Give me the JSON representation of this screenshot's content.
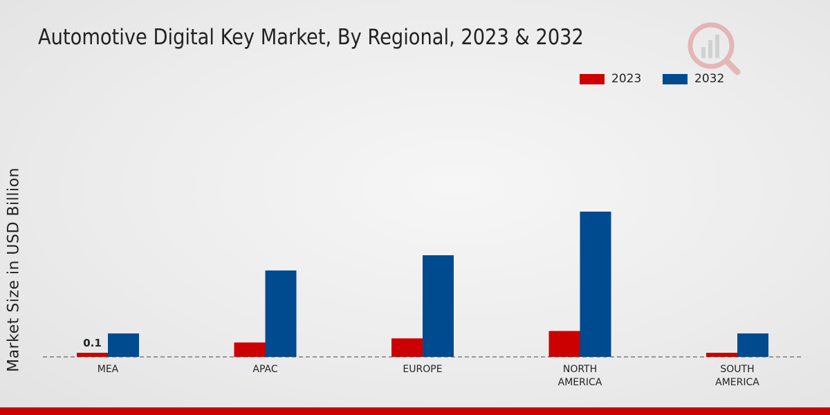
{
  "title": "Automotive Digital Key Market, By Regional, 2023 & 2032",
  "colors": {
    "series_2023": "#cc0000",
    "series_2032": "#004a8f",
    "bottom_band": "#cc0000"
  },
  "logo_icon": "market-research-logo-icon",
  "chart_data": {
    "type": "bar",
    "title": "Automotive Digital Key Market, By Regional, 2023 & 2032",
    "xlabel": "",
    "ylabel": "Market Size in USD Billion",
    "categories": [
      "MEA",
      "APAC",
      "EUROPE",
      "NORTH AMERICA",
      "SOUTH AMERICA"
    ],
    "category_lines": [
      [
        "MEA"
      ],
      [
        "APAC"
      ],
      [
        "EUROPE"
      ],
      [
        "NORTH",
        "AMERICA"
      ],
      [
        "SOUTH",
        "AMERICA"
      ]
    ],
    "series": [
      {
        "name": "2023",
        "color": "#cc0000",
        "values": [
          0.1,
          0.35,
          0.45,
          0.63,
          0.1
        ]
      },
      {
        "name": "2032",
        "color": "#004a8f",
        "values": [
          0.57,
          2.1,
          2.47,
          3.53,
          0.57
        ]
      }
    ],
    "data_labels": [
      {
        "series": 0,
        "index": 0,
        "text": "0.1"
      }
    ],
    "ylim": [
      0,
      4.5
    ],
    "grid": false,
    "legend_position": "top-right"
  }
}
